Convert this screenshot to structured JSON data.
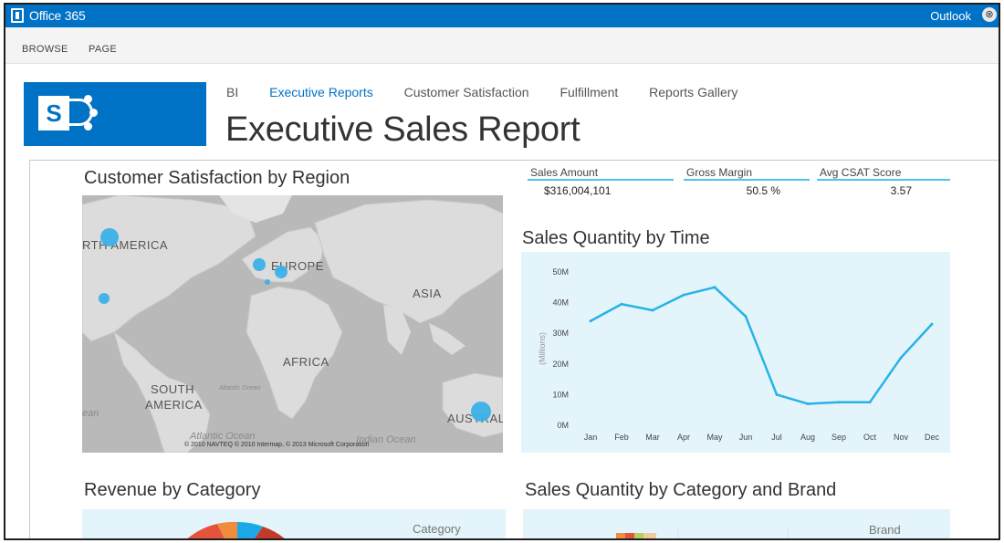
{
  "suitebar": {
    "title": "Office 365",
    "app": "Outlook",
    "close_glyph": "⊗"
  },
  "ribbon": {
    "tabs": [
      "BROWSE",
      "PAGE"
    ]
  },
  "site": {
    "logo_letter": "S",
    "nav": [
      {
        "label": "BI",
        "selected": false
      },
      {
        "label": "Executive Reports",
        "selected": true
      },
      {
        "label": "Customer Satisfaction",
        "selected": false
      },
      {
        "label": "Fulfillment",
        "selected": false
      },
      {
        "label": "Reports Gallery",
        "selected": false
      }
    ],
    "page_title": "Executive Sales Report"
  },
  "map": {
    "title": "Customer Satisfaction by Region",
    "labels": [
      "RTH AMERICA",
      "EUROPE",
      "ASIA",
      "AFRICA",
      "SOUTH",
      "AMERICA",
      "AUSTRAL"
    ],
    "oceans": [
      "Atlantic Ocean",
      "Indian Ocean",
      "Atlantic Ocean",
      "ean"
    ],
    "copyright": "© 2010 NAVTEQ © 2010 Intermap, © 2013 Microsoft Corporation"
  },
  "kpis": [
    {
      "label": "Sales Amount",
      "value": "$316,004,101"
    },
    {
      "label": "Gross Margin",
      "value": "50.5 %"
    },
    {
      "label": "Avg CSAT Score",
      "value": "3.57"
    }
  ],
  "line_chart_title": "Sales Quantity by Time",
  "chart_data": {
    "type": "line",
    "title": "Sales Quantity by Time",
    "ylabel": "(Millions)",
    "x": [
      "Jan",
      "Feb",
      "Mar",
      "Apr",
      "May",
      "Jun",
      "Jul",
      "Aug",
      "Sep",
      "Oct",
      "Nov",
      "Dec"
    ],
    "y_ticks": [
      "0M",
      "10M",
      "20M",
      "30M",
      "40M",
      "50M"
    ],
    "ylim": [
      0,
      50
    ],
    "series": [
      {
        "values": [
          34,
          39.5,
          37.5,
          42.5,
          45,
          35.5,
          10,
          7,
          7.5,
          7.5,
          22,
          33
        ],
        "color": "#27b2e8"
      }
    ],
    "grid": false
  },
  "bottom_left": {
    "title": "Revenue by Category",
    "legend_title": "Category"
  },
  "bottom_right": {
    "title": "Sales Quantity by Category and Brand",
    "legend_title": "Brand"
  }
}
